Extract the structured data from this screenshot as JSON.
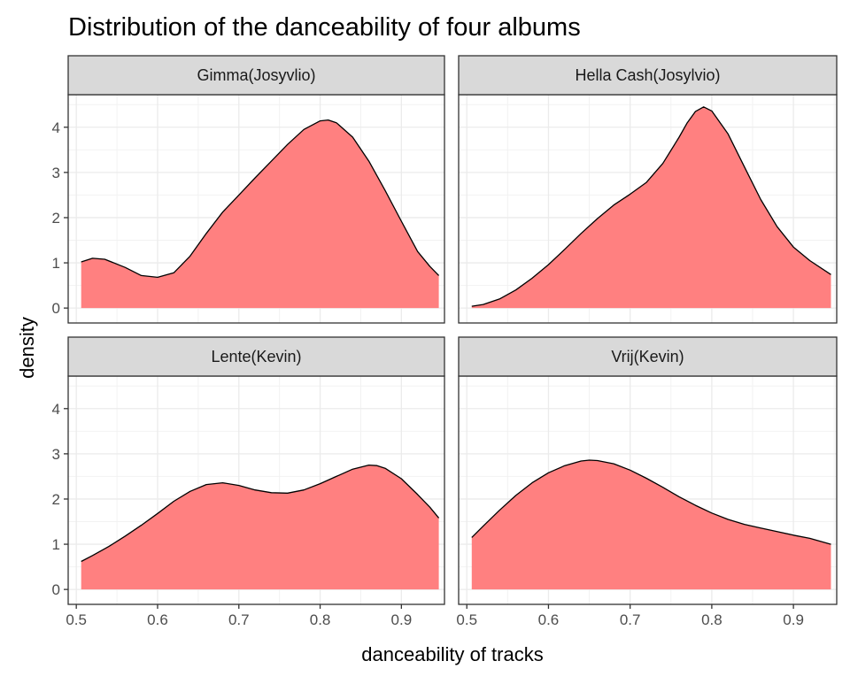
{
  "chart_data": {
    "type": "area",
    "title": "Distribution of the danceability of four albums",
    "xlabel": "danceability of tracks",
    "ylabel": "density",
    "xlim": [
      0.49,
      0.953
    ],
    "ylim": [
      -0.33,
      4.72
    ],
    "x_ticks": [
      "0.5",
      "0.6",
      "0.7",
      "0.8",
      "0.9"
    ],
    "y_ticks": [
      "0",
      "1",
      "2",
      "3",
      "4"
    ],
    "grid": true,
    "fill_color": "#FF8080",
    "line_color": "#000000",
    "panels": [
      {
        "name": "Gimma(Josyvlio)",
        "x": [
          0.506,
          0.52,
          0.535,
          0.56,
          0.58,
          0.6,
          0.62,
          0.64,
          0.66,
          0.68,
          0.7,
          0.72,
          0.74,
          0.76,
          0.78,
          0.8,
          0.81,
          0.82,
          0.84,
          0.86,
          0.88,
          0.9,
          0.92,
          0.935,
          0.946
        ],
        "y": [
          1.02,
          1.1,
          1.08,
          0.9,
          0.72,
          0.68,
          0.78,
          1.15,
          1.65,
          2.12,
          2.5,
          2.88,
          3.25,
          3.62,
          3.95,
          4.14,
          4.16,
          4.1,
          3.78,
          3.25,
          2.6,
          1.92,
          1.25,
          0.92,
          0.72
        ]
      },
      {
        "name": "Hella Cash(Josylvio)",
        "x": [
          0.506,
          0.52,
          0.54,
          0.56,
          0.58,
          0.6,
          0.62,
          0.64,
          0.66,
          0.68,
          0.7,
          0.72,
          0.74,
          0.76,
          0.77,
          0.78,
          0.79,
          0.8,
          0.82,
          0.84,
          0.86,
          0.88,
          0.9,
          0.92,
          0.946
        ],
        "y": [
          0.04,
          0.08,
          0.2,
          0.4,
          0.66,
          0.96,
          1.3,
          1.65,
          1.98,
          2.28,
          2.52,
          2.78,
          3.2,
          3.78,
          4.1,
          4.35,
          4.45,
          4.36,
          3.85,
          3.12,
          2.4,
          1.8,
          1.35,
          1.05,
          0.74
        ]
      },
      {
        "name": "Lente(Kevin)",
        "x": [
          0.506,
          0.52,
          0.54,
          0.56,
          0.58,
          0.6,
          0.62,
          0.64,
          0.66,
          0.68,
          0.7,
          0.72,
          0.74,
          0.76,
          0.78,
          0.8,
          0.82,
          0.84,
          0.86,
          0.87,
          0.88,
          0.9,
          0.92,
          0.935,
          0.946
        ],
        "y": [
          0.62,
          0.75,
          0.95,
          1.18,
          1.42,
          1.68,
          1.95,
          2.17,
          2.32,
          2.36,
          2.3,
          2.2,
          2.14,
          2.13,
          2.2,
          2.34,
          2.5,
          2.66,
          2.75,
          2.74,
          2.68,
          2.45,
          2.1,
          1.82,
          1.58
        ]
      },
      {
        "name": "Vrij(Kevin)",
        "x": [
          0.506,
          0.52,
          0.54,
          0.56,
          0.58,
          0.6,
          0.62,
          0.64,
          0.65,
          0.66,
          0.68,
          0.7,
          0.72,
          0.74,
          0.76,
          0.78,
          0.8,
          0.82,
          0.84,
          0.86,
          0.88,
          0.9,
          0.92,
          0.946
        ],
        "y": [
          1.15,
          1.4,
          1.75,
          2.08,
          2.36,
          2.58,
          2.74,
          2.84,
          2.86,
          2.85,
          2.78,
          2.64,
          2.46,
          2.26,
          2.05,
          1.86,
          1.69,
          1.55,
          1.44,
          1.36,
          1.28,
          1.2,
          1.13,
          1.0
        ]
      }
    ]
  }
}
